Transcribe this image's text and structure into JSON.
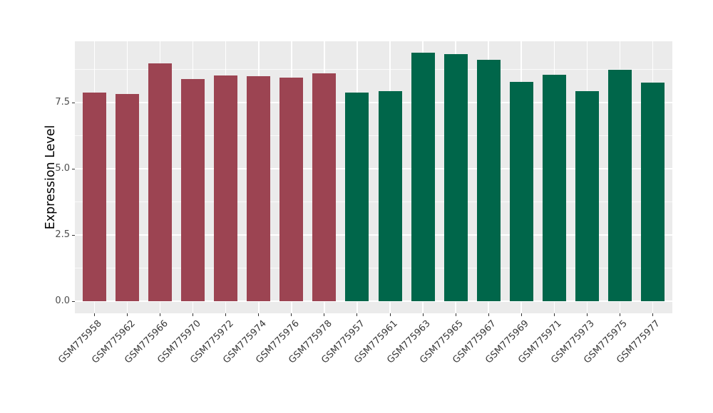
{
  "chart_data": {
    "type": "bar",
    "title": "",
    "xlabel": "",
    "ylabel": "Expression Level",
    "categories": [
      "GSM775958",
      "GSM775962",
      "GSM775966",
      "GSM775970",
      "GSM775972",
      "GSM775974",
      "GSM775976",
      "GSM775978",
      "GSM775957",
      "GSM775961",
      "GSM775963",
      "GSM775965",
      "GSM775967",
      "GSM775969",
      "GSM775971",
      "GSM775973",
      "GSM775975",
      "GSM775977"
    ],
    "values": [
      7.88,
      7.82,
      8.97,
      8.39,
      8.53,
      8.49,
      8.44,
      8.61,
      7.88,
      7.93,
      9.38,
      9.33,
      9.12,
      8.27,
      8.55,
      7.94,
      8.73,
      8.24
    ],
    "bar_groups": [
      "maroon",
      "maroon",
      "maroon",
      "maroon",
      "maroon",
      "maroon",
      "maroon",
      "maroon",
      "green",
      "green",
      "green",
      "green",
      "green",
      "green",
      "green",
      "green",
      "green",
      "green"
    ],
    "group_colors": {
      "maroon": "#9C4452",
      "green": "#00664A"
    },
    "ylim": [
      -0.45,
      9.81
    ],
    "yticks": [
      0.0,
      2.5,
      5.0,
      7.5
    ],
    "ytick_labels": [
      "0.0",
      "2.5",
      "5.0",
      "7.5"
    ],
    "minor_gridlines": [
      1.25,
      3.75,
      6.25,
      8.75
    ],
    "grid_on": true,
    "legend": "none",
    "panel_bg": "#EBEBEB",
    "grid_color": "#FFFFFF",
    "tick_color": "#333333",
    "axis_text_color": "#4d4d4d"
  }
}
